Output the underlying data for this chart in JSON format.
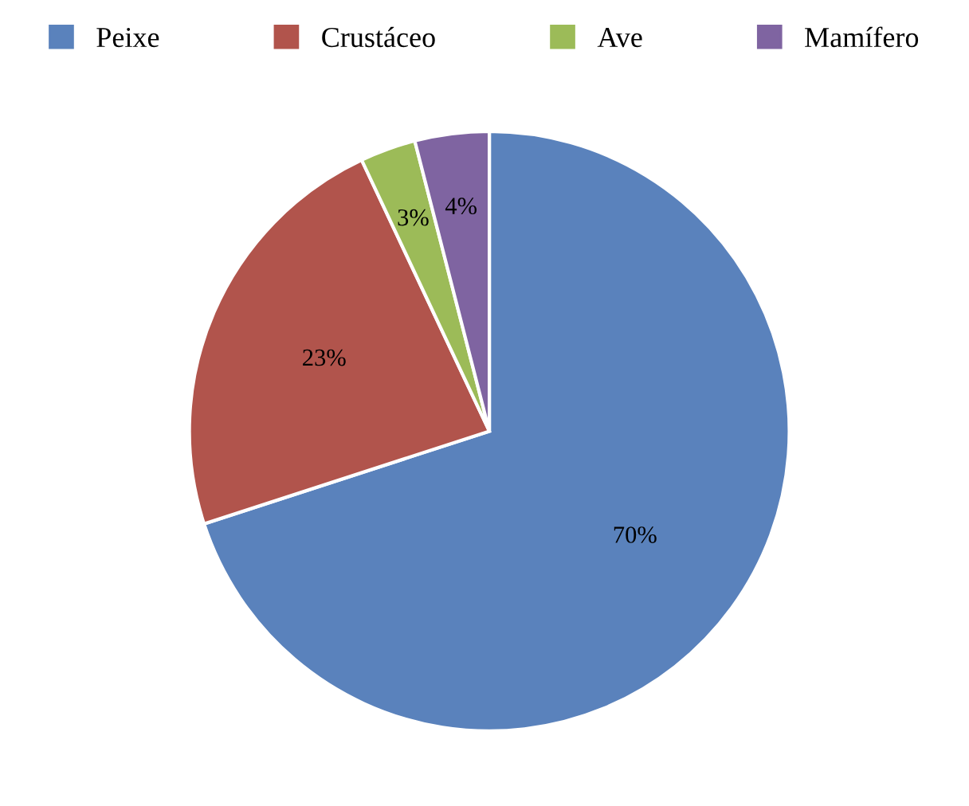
{
  "chart_data": {
    "type": "pie",
    "categories": [
      "Peixe",
      "Crustáceo",
      "Ave",
      "Mamífero"
    ],
    "values": [
      70,
      23,
      3,
      4
    ],
    "colors": [
      "#5a82bc",
      "#b1544c",
      "#9cbb58",
      "#7f64a1"
    ],
    "value_labels": [
      "70%",
      "23%",
      "3%",
      "4%"
    ],
    "legend": "top"
  }
}
